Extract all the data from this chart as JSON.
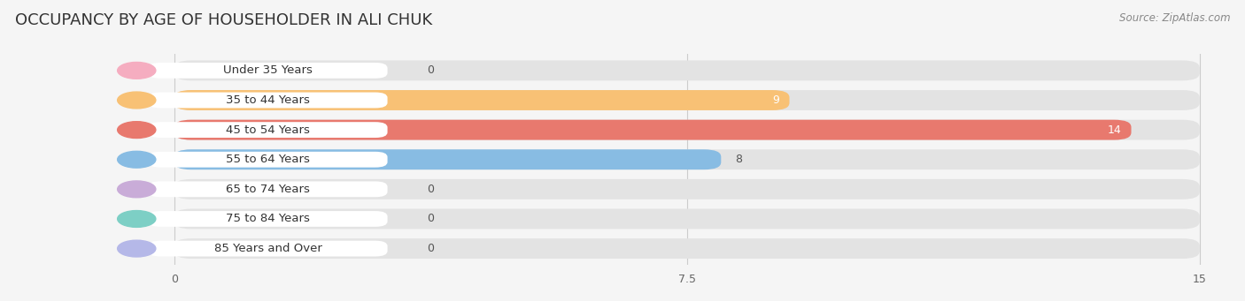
{
  "title": "OCCUPANCY BY AGE OF HOUSEHOLDER IN ALI CHUK",
  "source": "Source: ZipAtlas.com",
  "categories": [
    "Under 35 Years",
    "35 to 44 Years",
    "45 to 54 Years",
    "55 to 64 Years",
    "65 to 74 Years",
    "75 to 84 Years",
    "85 Years and Over"
  ],
  "values": [
    0,
    9,
    14,
    8,
    0,
    0,
    0
  ],
  "bar_colors": [
    "#f5adc0",
    "#f8c175",
    "#e8796e",
    "#88bce3",
    "#c9acd8",
    "#7dcfc5",
    "#b5b8e8"
  ],
  "background_color": "#f5f5f5",
  "bar_bg_color": "#e3e3e3",
  "xlim": [
    0,
    15
  ],
  "xticks": [
    0,
    7.5,
    15
  ],
  "title_fontsize": 13,
  "label_fontsize": 9.5,
  "value_fontsize": 9
}
